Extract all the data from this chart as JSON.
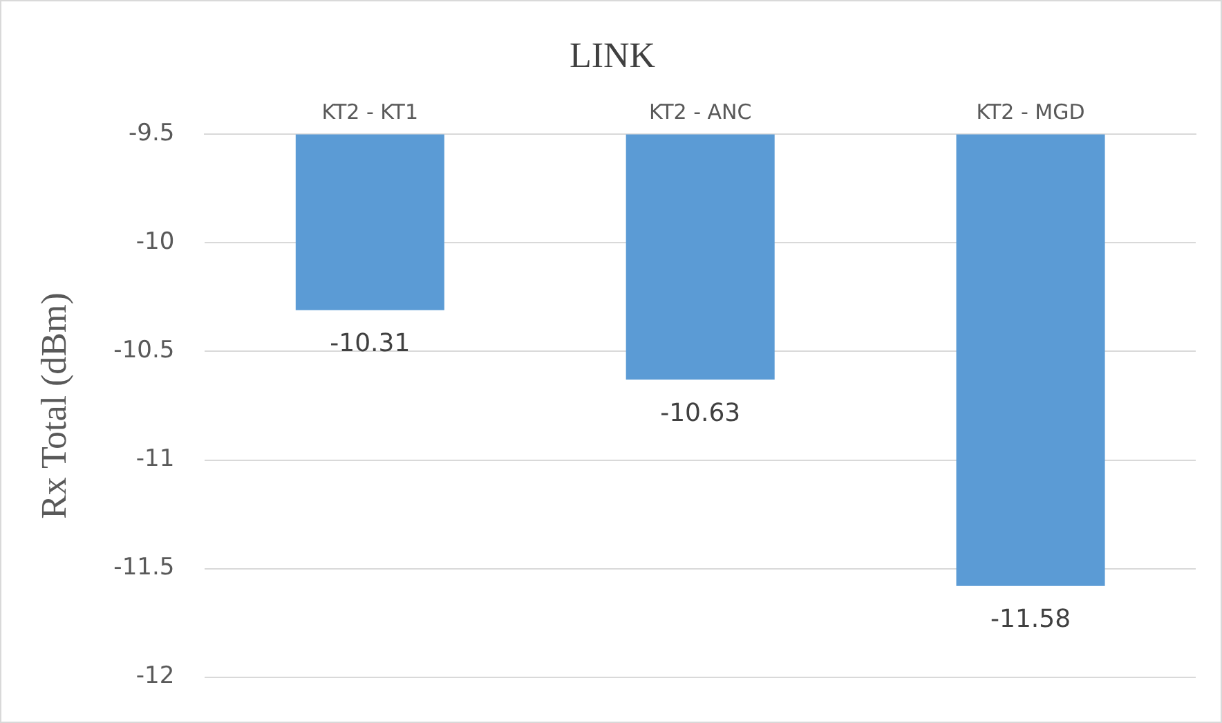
{
  "chart_data": {
    "type": "bar",
    "title": "LINK",
    "ylabel": "Rx Total (dBm)",
    "categories": [
      "KT2 - KT1",
      "KT2 - ANC",
      "KT2 - MGD"
    ],
    "values": [
      -10.31,
      -10.63,
      -11.58
    ],
    "color": "#5b9bd5",
    "ylim": [
      -12,
      -9.5
    ],
    "yticks": [
      -12,
      -11.5,
      -11,
      -10.5,
      -10,
      -9.5
    ],
    "grid": "y",
    "data_labels": true
  }
}
